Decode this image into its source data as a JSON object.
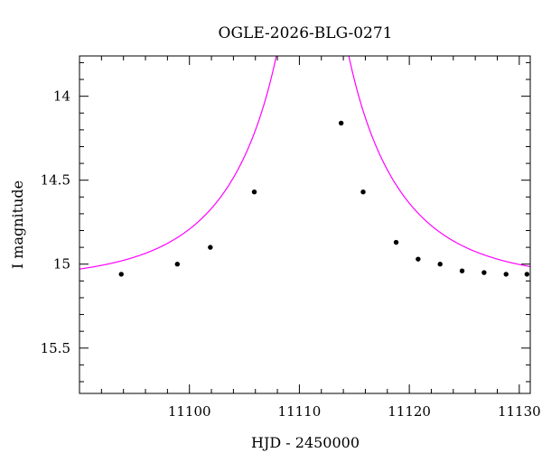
{
  "chart_data": {
    "type": "scatter",
    "title": "OGLE-2026-BLG-0271",
    "xlabel": "HJD - 2450000",
    "ylabel": "I magnitude",
    "xlim": [
      11090,
      11131
    ],
    "ylim": [
      15.77,
      13.76
    ],
    "y_inverted": true,
    "x_major_ticks": [
      11100,
      11110,
      11120,
      11130
    ],
    "x_tick_labels": [
      "11100",
      "11110",
      "11120",
      "11130"
    ],
    "x_minor_step": 2,
    "y_major_ticks": [
      14,
      14.5,
      15,
      15.5
    ],
    "y_tick_labels": [
      "14",
      "14.5",
      "15",
      "15.5"
    ],
    "y_minor_step": 0.1,
    "grid": false,
    "colors": {
      "model": "#ff00ff",
      "points": "#000000"
    },
    "series": [
      {
        "type": "scatter",
        "x": [
          11093.8,
          11098.9,
          11101.9,
          11105.9,
          11113.8,
          11115.8,
          11118.8,
          11120.8,
          11122.8,
          11124.8,
          11126.8,
          11128.8,
          11130.7
        ],
        "y": [
          15.06,
          15.0,
          14.9,
          14.57,
          14.16,
          14.57,
          14.87,
          14.97,
          15.0,
          15.04,
          15.05,
          15.06,
          15.06
        ]
      },
      {
        "type": "line",
        "model": "paczynski",
        "t0": 11111.2,
        "tE": 11.0,
        "u0": 0.025,
        "I_base": 15.1,
        "x_range": [
          11090,
          11131
        ]
      }
    ]
  }
}
